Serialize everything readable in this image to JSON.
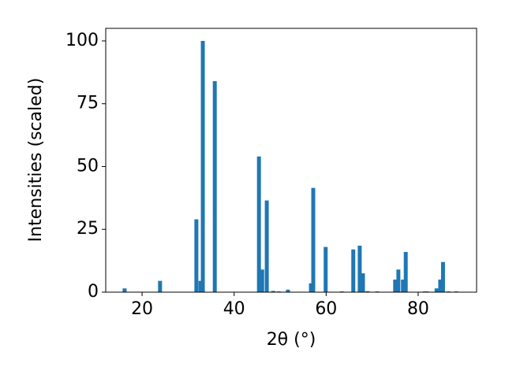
{
  "chart_data": {
    "type": "bar",
    "x": [
      16.2,
      23.9,
      31.8,
      32.7,
      33.2,
      35.8,
      45.4,
      46.1,
      47.1,
      48.5,
      49.7,
      51.7,
      56.7,
      57.2,
      59.9,
      63.4,
      65.9,
      67.3,
      68.0,
      69.0,
      71.1,
      75.0,
      75.7,
      76.7,
      77.3,
      81.4,
      81.9,
      84.0,
      84.8,
      85.4,
      86.6,
      88.3
    ],
    "values": [
      1.5,
      4.5,
      29,
      4.5,
      100,
      84,
      54,
      9,
      36.5,
      0.5,
      0.3,
      1,
      3.5,
      41.5,
      18,
      0.3,
      17,
      18.5,
      7.5,
      0.4,
      0.3,
      5,
      9,
      5,
      16,
      0.3,
      0.3,
      1.5,
      5,
      12,
      0.3,
      0.3
    ],
    "color": "#1f77b4",
    "xlabel": "2θ (°)",
    "ylabel": "Intensities (scaled)",
    "xlim": [
      12.1,
      92.7
    ],
    "ylim": [
      0,
      105
    ],
    "xticks": [
      20,
      40,
      60,
      80
    ],
    "yticks": [
      0,
      25,
      50,
      75,
      100
    ]
  }
}
